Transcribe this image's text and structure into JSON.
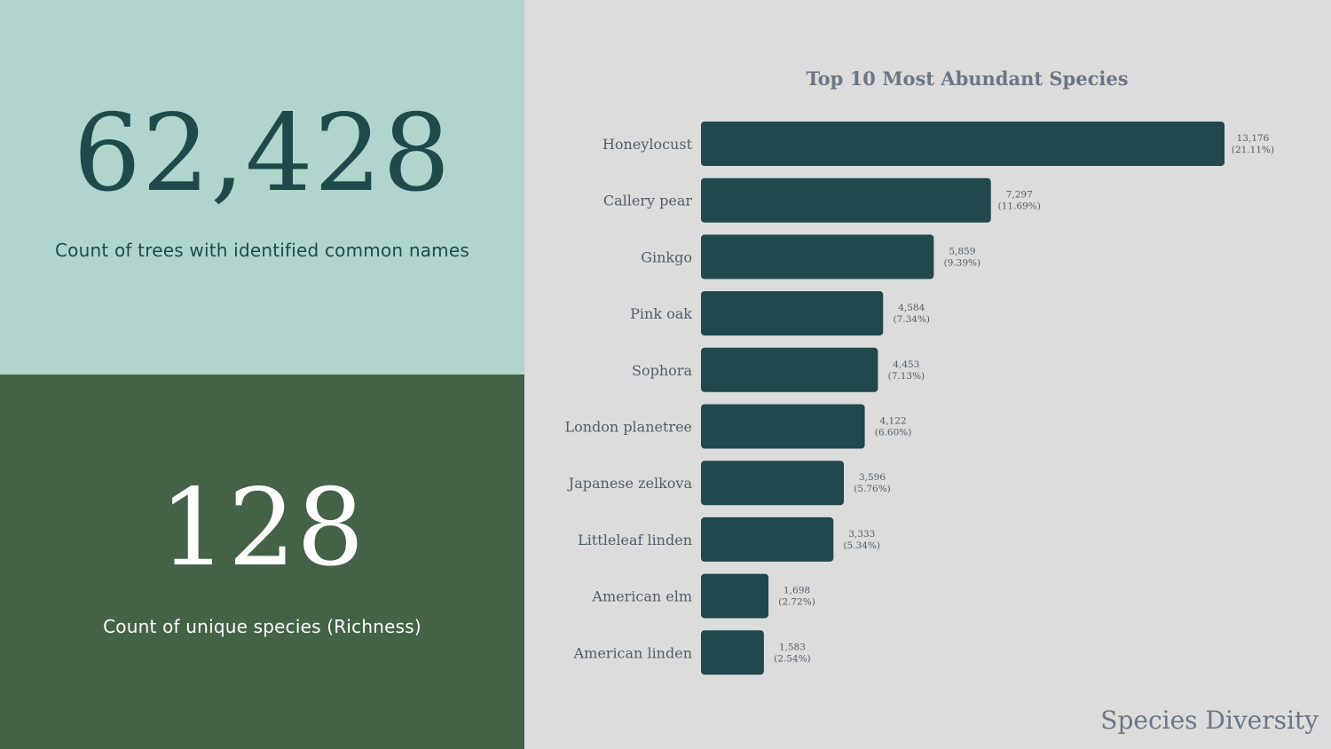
{
  "kpis": {
    "total_trees": {
      "value": "62,428",
      "label": "Count of trees with identified common names"
    },
    "unique_species": {
      "value": "128",
      "label": "Count of unique species (Richness)"
    }
  },
  "footer": {
    "title": "Species Diversity"
  },
  "colors": {
    "kpi_top_bg": "#b0d5cd",
    "kpi_bottom_bg": "#446246",
    "chart_bg": "#dcdcdc",
    "bar": "#20484d",
    "dark_text": "#1f4a4c",
    "muted_text": "#6c7684"
  },
  "chart_data": {
    "type": "bar",
    "orientation": "horizontal",
    "title": "Top 10 Most Abundant Species",
    "categories": [
      "Honeylocust",
      "Callery pear",
      "Ginkgo",
      "Pink oak",
      "Sophora",
      "London planetree",
      "Japanese zelkova",
      "Littleleaf linden",
      "American elm",
      "American linden"
    ],
    "values": [
      13176,
      7297,
      5859,
      4584,
      4453,
      4122,
      3596,
      3333,
      1698,
      1583
    ],
    "value_labels": [
      "13,176",
      "7,297",
      "5,859",
      "4,584",
      "4,453",
      "4,122",
      "3,596",
      "3,333",
      "1,698",
      "1,583"
    ],
    "percent_labels": [
      "(21.11%)",
      "(11.69%)",
      "(9.39%)",
      "(7.34%)",
      "(7.13%)",
      "(6.60%)",
      "(5.76%)",
      "(5.34%)",
      "(2.72%)",
      "(2.54%)"
    ],
    "xlabel": "",
    "ylabel": "",
    "grid": false,
    "legend": "none"
  }
}
